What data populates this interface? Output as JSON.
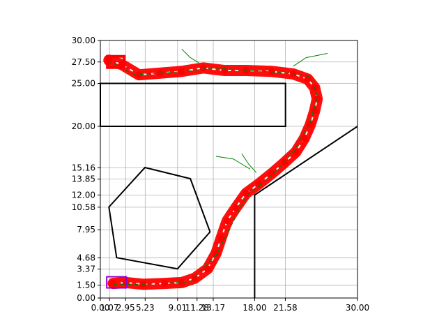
{
  "chart_data": {
    "type": "line",
    "title": "",
    "xlabel": "",
    "ylabel": "",
    "xlim": [
      0,
      30
    ],
    "ylim": [
      0,
      30
    ],
    "grid": true,
    "x_ticks": [
      0.0,
      1.07,
      2.95,
      5.23,
      9.01,
      11.28,
      13.17,
      18.0,
      21.58,
      30.0
    ],
    "x_tick_labels": [
      "0.00",
      "1.07",
      "2.95",
      "5.23",
      "9.01",
      "11.28",
      "13.17",
      "18.00",
      "21.58",
      "30.00"
    ],
    "y_ticks": [
      0.0,
      1.5,
      3.37,
      4.68,
      7.95,
      10.58,
      12.0,
      13.85,
      15.16,
      20.0,
      25.0,
      27.5,
      30.0
    ],
    "y_tick_labels": [
      "0.00",
      "1.50",
      "3.37",
      "4.68",
      "7.95",
      "10.58",
      "12.00",
      "13.85",
      "15.16",
      "20.00",
      "25.00",
      "27.50",
      "30.00"
    ],
    "obstacles": [
      {
        "name": "pentagon",
        "points": [
          [
            1.0,
            10.6
          ],
          [
            5.2,
            15.2
          ],
          [
            10.5,
            13.9
          ],
          [
            12.8,
            7.7
          ],
          [
            9.0,
            3.4
          ],
          [
            1.9,
            4.7
          ]
        ]
      },
      {
        "name": "upper-rectangle",
        "points": [
          [
            0,
            25.0
          ],
          [
            21.6,
            25.0
          ],
          [
            21.6,
            20.0
          ],
          [
            0,
            20.0
          ]
        ]
      },
      {
        "name": "right-wall",
        "points": [
          [
            18.0,
            0
          ],
          [
            18.0,
            12.0
          ],
          [
            30.0,
            20.0
          ]
        ]
      }
    ],
    "series": [
      {
        "role": "planned-path",
        "color": "#ff0000",
        "x": [
          1.5,
          3.0,
          5.0,
          7.5,
          9.5,
          11.0,
          12.5,
          13.5,
          14.1,
          14.8,
          15.8,
          17.0,
          18.5,
          20.0,
          21.5,
          22.8,
          23.8,
          24.5,
          25.0,
          25.3,
          25.0,
          24.2,
          22.5,
          20.0,
          17.0,
          14.5,
          12.0,
          9.5,
          7.0,
          4.5,
          2.5,
          1.0
        ],
        "y": [
          1.7,
          1.8,
          1.6,
          1.7,
          1.8,
          2.3,
          3.4,
          5.2,
          7.0,
          9.0,
          10.5,
          12.2,
          13.3,
          14.5,
          15.8,
          17.0,
          18.6,
          20.2,
          21.8,
          23.2,
          24.5,
          25.5,
          26.1,
          26.4,
          26.5,
          26.5,
          26.8,
          26.4,
          26.2,
          26.0,
          27.2,
          27.7
        ]
      },
      {
        "role": "trajectory-samples",
        "color": "#008000",
        "x": [
          1.5,
          4.5,
          7.5,
          10.5,
          13.5,
          17.0,
          20.0,
          22.5,
          24.5,
          25.3,
          24.5,
          22.0,
          19.0,
          16.0,
          13.0,
          10.0,
          7.0,
          4.0,
          1.0
        ],
        "y": [
          1.6,
          1.6,
          1.7,
          1.9,
          5.0,
          11.8,
          14.3,
          17.0,
          20.5,
          23.5,
          25.8,
          26.2,
          26.4,
          26.6,
          26.8,
          26.4,
          26.2,
          26.0,
          27.6
        ]
      }
    ],
    "start_marker": {
      "color": "#9400d3",
      "x": 1.07,
      "y": 1.5
    },
    "goal_marker": {
      "color": "#ff0000",
      "x": 1.07,
      "y": 27.5
    }
  }
}
